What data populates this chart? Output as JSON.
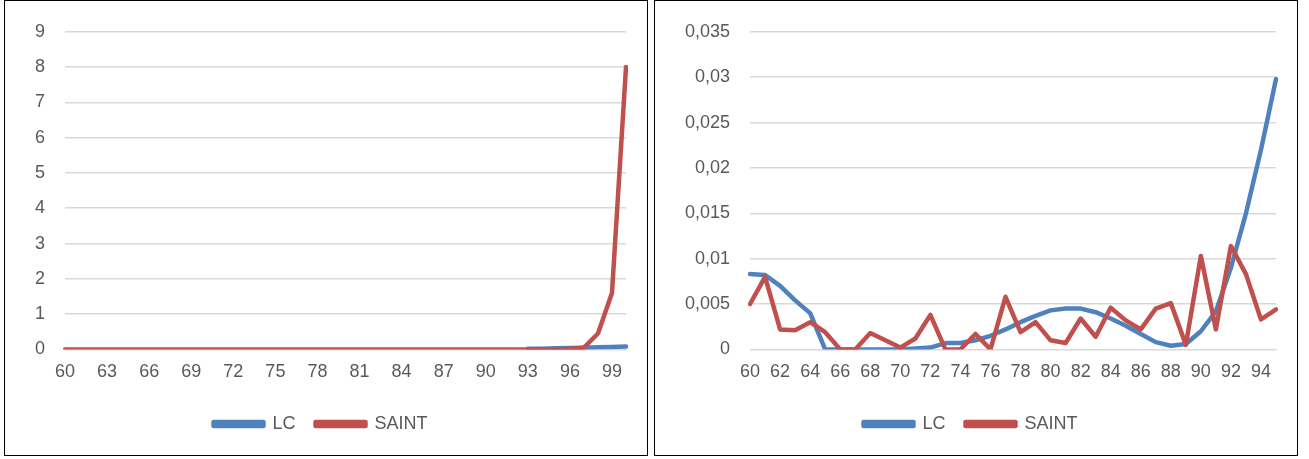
{
  "chart_data": [
    {
      "type": "line",
      "categories": [
        "60",
        null,
        null,
        "63",
        null,
        null,
        "66",
        null,
        null,
        "69",
        null,
        null,
        "72",
        null,
        null,
        "75",
        null,
        null,
        "78",
        null,
        null,
        "81",
        null,
        null,
        "84",
        null,
        null,
        "87",
        null,
        null,
        "90",
        null,
        null,
        "93",
        null,
        null,
        "96",
        null,
        null,
        "99",
        null
      ],
      "series": [
        {
          "name": "LC",
          "color": "#4f81bd",
          "values": [
            null,
            null,
            null,
            null,
            null,
            null,
            null,
            null,
            null,
            null,
            null,
            null,
            null,
            null,
            null,
            null,
            null,
            null,
            null,
            null,
            null,
            null,
            null,
            null,
            null,
            null,
            null,
            null,
            null,
            null,
            null,
            null,
            null,
            0.02,
            0.02,
            0.03,
            0.04,
            0.05,
            0.06,
            0.07,
            0.08
          ]
        },
        {
          "name": "SAINT",
          "color": "#c0504d",
          "values": [
            0,
            0,
            0,
            0,
            0,
            0,
            0,
            0,
            0,
            0,
            0,
            0,
            0,
            0,
            0,
            0,
            0,
            0,
            0,
            0,
            0,
            0,
            0,
            0,
            0,
            0,
            0,
            0,
            0,
            0,
            0,
            0,
            0,
            0,
            0,
            0,
            0.02,
            0.05,
            0.45,
            1.6,
            8.0
          ]
        }
      ],
      "ylim": [
        0,
        9
      ],
      "yticks": [
        0,
        1,
        2,
        3,
        4,
        5,
        6,
        7,
        8,
        9
      ],
      "grid": "y",
      "legend": "bottom",
      "marker": "none",
      "line_style": "solid"
    },
    {
      "type": "line",
      "categories": [
        "60",
        null,
        "62",
        null,
        "64",
        null,
        "66",
        null,
        "68",
        null,
        "70",
        null,
        "72",
        null,
        "74",
        null,
        "76",
        null,
        "78",
        null,
        "80",
        null,
        "82",
        null,
        "84",
        null,
        "86",
        null,
        "88",
        null,
        "90",
        null,
        "92",
        null,
        "94",
        null
      ],
      "series": [
        {
          "name": "LC",
          "color": "#4f81bd",
          "values": [
            0.0083,
            0.0082,
            0.007,
            0.0054,
            0.004,
            0,
            0,
            0,
            0,
            0,
            0,
            0.0001,
            0.0002,
            0.0007,
            0.0007,
            0.001,
            0.0015,
            0.0022,
            0.003,
            0.0037,
            0.0043,
            0.0045,
            0.0045,
            0.0041,
            0.0034,
            0.0026,
            0.0017,
            0.0008,
            0.0004,
            0.0006,
            0.002,
            0.0042,
            0.009,
            0.015,
            0.022,
            0.0298
          ]
        },
        {
          "name": "SAINT",
          "color": "#c0504d",
          "values": [
            0.005,
            0.008,
            0.0022,
            0.0021,
            0.003,
            0.0019,
            0,
            0,
            0.0018,
            0.001,
            0.0002,
            0.0012,
            0.0038,
            0,
            0,
            0.0017,
            0,
            0.0058,
            0.0019,
            0.003,
            0.001,
            0.0007,
            0.0034,
            0.0014,
            0.0046,
            0.0032,
            0.0022,
            0.0045,
            0.0051,
            0.0005,
            0.0103,
            0.0022,
            0.0114,
            0.0083,
            0.0033,
            0.0044
          ]
        }
      ],
      "ylim": [
        0,
        0.035
      ],
      "yticks": [
        {
          "value": 0,
          "label": "0"
        },
        {
          "value": 0.005,
          "label": "0,005"
        },
        {
          "value": 0.01,
          "label": "0,01"
        },
        {
          "value": 0.015,
          "label": "0,015"
        },
        {
          "value": 0.02,
          "label": "0,02"
        },
        {
          "value": 0.025,
          "label": "0,025"
        },
        {
          "value": 0.03,
          "label": "0,03"
        },
        {
          "value": 0.035,
          "label": "0,035"
        }
      ],
      "grid": "y",
      "legend": "bottom",
      "marker": "none",
      "line_style": "solid"
    }
  ]
}
